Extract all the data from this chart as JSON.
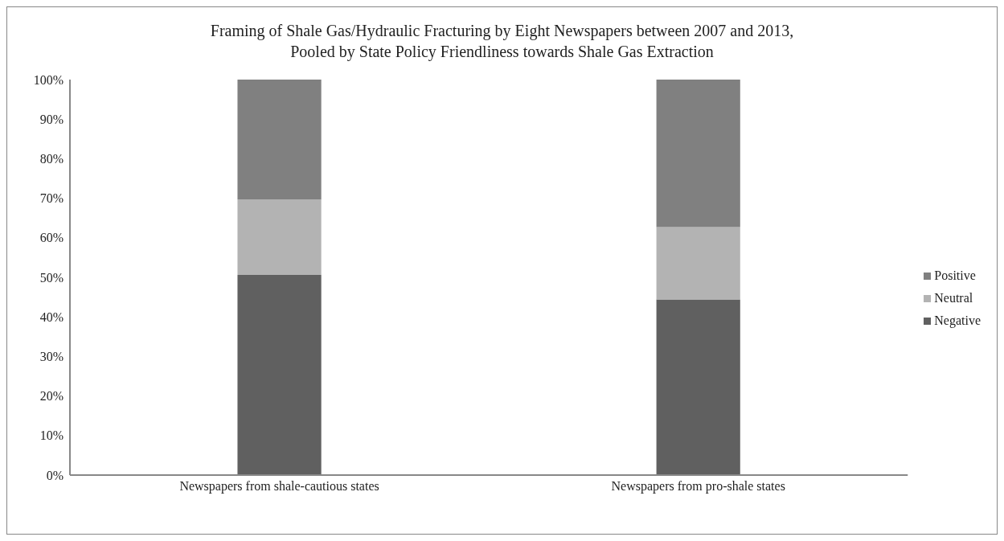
{
  "chart_data": {
    "type": "bar",
    "stacked": true,
    "title": "Framing of Shale Gas/Hydraulic Fracturing by Eight Newspapers between 2007 and 2013,\nPooled by State Policy Friendliness towards Shale Gas Extraction",
    "categories": [
      "Newspapers from shale-cautious states",
      "Newspapers from pro-shale states"
    ],
    "series": [
      {
        "name": "Negative",
        "color": "#606060",
        "values": [
          50.6,
          44.4
        ]
      },
      {
        "name": "Neutral",
        "color": "#b3b3b3",
        "values": [
          19.1,
          18.3
        ]
      },
      {
        "name": "Positive",
        "color": "#808080",
        "values": [
          30.3,
          37.3
        ]
      }
    ],
    "ylim": [
      0,
      100
    ],
    "yticks": [
      {
        "value": 0,
        "label": "0%"
      },
      {
        "value": 10,
        "label": "10%"
      },
      {
        "value": 20,
        "label": "20%"
      },
      {
        "value": 30,
        "label": "30%"
      },
      {
        "value": 40,
        "label": "40%"
      },
      {
        "value": 50,
        "label": "50%"
      },
      {
        "value": 60,
        "label": "60%"
      },
      {
        "value": 70,
        "label": "70%"
      },
      {
        "value": 80,
        "label": "80%"
      },
      {
        "value": 90,
        "label": "90%"
      },
      {
        "value": 100,
        "label": "100%"
      }
    ],
    "grid": false,
    "legend": "right"
  }
}
